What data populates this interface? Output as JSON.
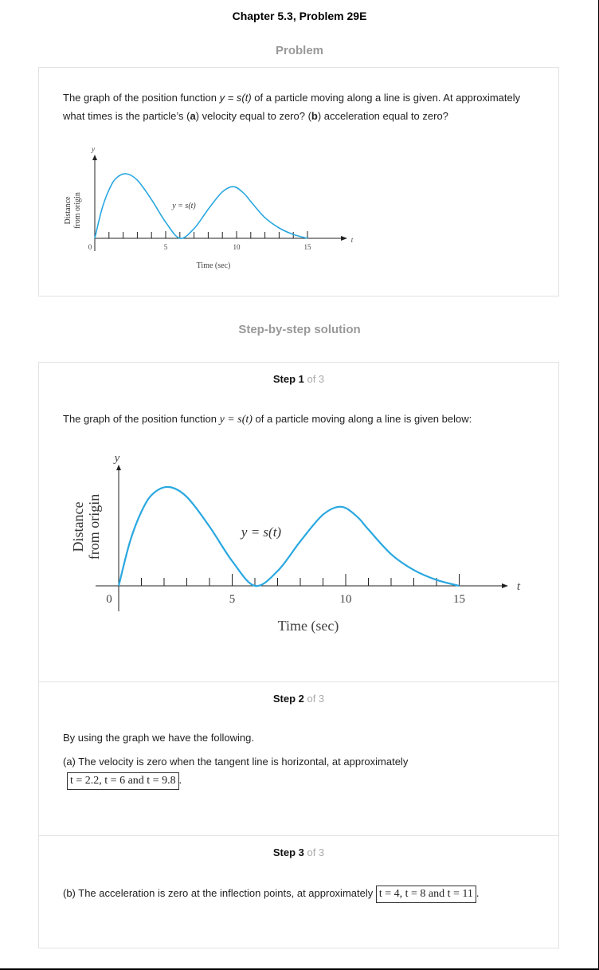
{
  "header": {
    "title": "Chapter 5.3, Problem 29E"
  },
  "problem": {
    "heading": "Problem",
    "text_before": "The graph of the position function ",
    "text_func": "y = s(t)",
    "text_mid1": " of a particle moving along a line is given. At approximately what times is the particle’s (",
    "part_a": "a",
    "text_mid2": ") velocity equal to zero? (",
    "part_b": "b",
    "text_after": ") acceleration equal to zero?"
  },
  "solution": {
    "heading": "Step-by-step solution"
  },
  "steps": [
    {
      "label_bold": "Step 1",
      "label_of": " of 3",
      "text_before": "The graph of the position function ",
      "func": "y = s(t)",
      "text_after": " of a particle moving along a line is given below:"
    },
    {
      "label_bold": "Step 2",
      "label_of": " of 3",
      "line1": "By using the graph we have the following.",
      "line2": "(a) The velocity is zero when the tangent line is horizontal, at approximately",
      "answer": "t = 2.2,  t = 6 and t = 9.8"
    },
    {
      "label_bold": "Step 3",
      "label_of": " of 3",
      "line1": "(b) The acceleration is zero at the inflection points, at approximately ",
      "answer": "t = 4,  t = 8 and t = 11"
    }
  ],
  "chart_data": [
    {
      "type": "line",
      "curve_label": "y = s(t)",
      "xlabel": "Time (sec)",
      "ylabel": "Distance from origin",
      "x_axis_symbol": "t",
      "y_axis_symbol": "y",
      "origin_label": "0",
      "xtick_labels": [
        "5",
        "10",
        "15"
      ],
      "xlim": [
        0,
        17
      ],
      "series": [
        {
          "x": [
            0,
            0.5,
            1,
            1.5,
            2.2,
            3,
            4,
            5,
            6,
            7,
            8,
            9,
            9.8,
            10.5,
            11,
            12,
            13,
            14,
            15
          ],
          "y": [
            0,
            0.45,
            0.75,
            0.93,
            1.0,
            0.9,
            0.6,
            0.25,
            0,
            0.15,
            0.45,
            0.72,
            0.8,
            0.7,
            0.57,
            0.32,
            0.16,
            0.06,
            0
          ]
        }
      ]
    },
    {
      "type": "line",
      "curve_label": "y = s(t)",
      "xlabel": "Time (sec)",
      "ylabel": "Distance from origin",
      "x_axis_symbol": "t",
      "y_axis_symbol": "y",
      "origin_label": "0",
      "xtick_labels": [
        "5",
        "10",
        "15"
      ],
      "xlim": [
        0,
        17
      ],
      "series": [
        {
          "x": [
            0,
            0.5,
            1,
            1.5,
            2.2,
            3,
            4,
            5,
            6,
            7,
            8,
            9,
            9.8,
            10.5,
            11,
            12,
            13,
            14,
            15
          ],
          "y": [
            0,
            0.45,
            0.75,
            0.93,
            1.0,
            0.9,
            0.6,
            0.25,
            0,
            0.15,
            0.45,
            0.72,
            0.8,
            0.7,
            0.57,
            0.32,
            0.16,
            0.06,
            0
          ]
        }
      ]
    }
  ]
}
